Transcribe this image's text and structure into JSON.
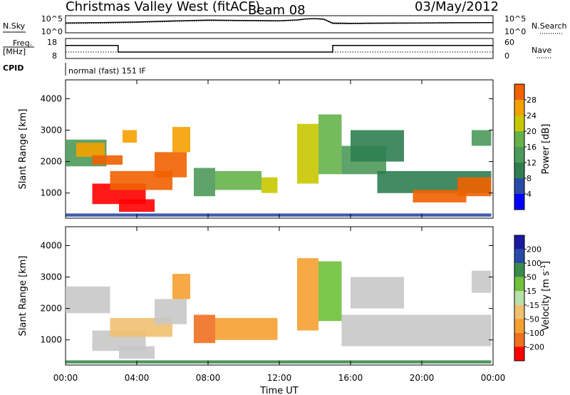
{
  "header": {
    "station": "Christmas Valley West (fitACF)",
    "beam": "Beam 08",
    "date": "03/May/2012"
  },
  "noise_panel": {
    "left_label": "N.Sky",
    "right_label": "N.Search",
    "left_ticks": [
      "10^5",
      "10^0"
    ],
    "right_ticks": [
      "10^5",
      "10^0"
    ]
  },
  "freq_panel": {
    "left_label_line1": "Freq.",
    "left_label_line2": "[MHz]",
    "right_label": "Nave",
    "left_ticks": [
      "18",
      "8"
    ],
    "right_ticks": [
      "60",
      "0"
    ]
  },
  "cpid": {
    "label": "CPID",
    "program": "normal (fast) 151 IF"
  },
  "x_axis": {
    "label": "Time UT",
    "ticks": [
      "00:00",
      "04:00",
      "08:00",
      "12:00",
      "16:00",
      "20:00",
      "00:00"
    ]
  },
  "colors": {
    "power": [
      "#0000ff",
      "#2a4aa8",
      "#2f7e52",
      "#4c9a5a",
      "#66b24a",
      "#c8c800",
      "#f5a000",
      "#f06000",
      "#ff0000"
    ],
    "velocity": [
      "#1a1aa0",
      "#2a4aa8",
      "#3a8a4a",
      "#6fc03a",
      "#b8e0a8",
      "#c8c8c8",
      "#f0c070",
      "#f5a030",
      "#f07020",
      "#ff0000"
    ]
  },
  "chart_data": [
    {
      "type": "line",
      "title": "",
      "ylabel": "N.Sky",
      "scale": "log",
      "ylim": [
        1,
        100000
      ],
      "xlim_hours": [
        0,
        24
      ],
      "series": [
        {
          "name": "N.Sky",
          "x": [
            0,
            2,
            4,
            6,
            8,
            10,
            12,
            13,
            13.5,
            14,
            14.5,
            15,
            16,
            18,
            20,
            22,
            24
          ],
          "y": [
            800,
            1000,
            1500,
            3000,
            5000,
            4000,
            3500,
            6000,
            12000,
            15000,
            10000,
            700,
            600,
            700,
            800,
            900,
            1000
          ]
        },
        {
          "name": "N.Search",
          "x": [
            0,
            2,
            4,
            6,
            8,
            10,
            12,
            13,
            13.5,
            14,
            14.5,
            15,
            16,
            18,
            20,
            22,
            24
          ],
          "y": [
            500,
            600,
            1000,
            2000,
            3500,
            3000,
            2500,
            4000,
            9000,
            11000,
            7000,
            400,
            400,
            500,
            600,
            700,
            800
          ]
        }
      ]
    },
    {
      "type": "line",
      "title": "",
      "ylabel": "Freq. [MHz]",
      "ylim": [
        8,
        18
      ],
      "xlim_hours": [
        0,
        24
      ],
      "series": [
        {
          "name": "Freq.",
          "x": [
            0,
            2.95,
            2.95,
            15.0,
            15.0,
            24
          ],
          "y": [
            14.5,
            14.5,
            11.2,
            11.2,
            14.5,
            14.5
          ]
        },
        {
          "name": "Nave",
          "x": [
            0,
            24
          ],
          "y": [
            18,
            18
          ]
        }
      ]
    },
    {
      "type": "heatmap",
      "title": "",
      "quantity": "Power",
      "xlabel": "Time UT",
      "ylabel": "Slant Range [km]",
      "xlim_hours": [
        0,
        24
      ],
      "ylim": [
        200,
        4600
      ],
      "yticks": [
        1000,
        2000,
        3000,
        4000
      ],
      "colorbar_label": "Power [dB]",
      "colorbar_ticks": [
        "4",
        "8",
        "12",
        "16",
        "20",
        "24",
        "28"
      ],
      "colorbar_range": [
        0,
        32
      ],
      "regions": [
        {
          "t0": 0.0,
          "t1": 2.3,
          "r0": 1850,
          "r1": 2700,
          "value": 14
        },
        {
          "t0": 0.6,
          "t1": 2.2,
          "r0": 2150,
          "r1": 2600,
          "value": 22
        },
        {
          "t0": 1.5,
          "t1": 3.2,
          "r0": 1900,
          "r1": 2200,
          "value": 26
        },
        {
          "t0": 1.5,
          "t1": 4.5,
          "r0": 650,
          "r1": 1300,
          "value": 30
        },
        {
          "t0": 2.5,
          "t1": 6.0,
          "r0": 1100,
          "r1": 1700,
          "value": 28
        },
        {
          "t0": 3.0,
          "t1": 5.0,
          "r0": 400,
          "r1": 800,
          "value": 29
        },
        {
          "t0": 5.0,
          "t1": 6.8,
          "r0": 1500,
          "r1": 2300,
          "value": 27
        },
        {
          "t0": 6.0,
          "t1": 7.0,
          "r0": 2300,
          "r1": 3100,
          "value": 24
        },
        {
          "t0": 3.2,
          "t1": 4.0,
          "r0": 2600,
          "r1": 3000,
          "value": 22
        },
        {
          "t0": 7.2,
          "t1": 8.4,
          "r0": 900,
          "r1": 1800,
          "value": 14
        },
        {
          "t0": 8.4,
          "t1": 11.0,
          "r0": 1100,
          "r1": 1700,
          "value": 16
        },
        {
          "t0": 11.0,
          "t1": 11.9,
          "r0": 1000,
          "r1": 1500,
          "value": 18
        },
        {
          "t0": 13.0,
          "t1": 14.2,
          "r0": 1300,
          "r1": 3200,
          "value": 20
        },
        {
          "t0": 14.2,
          "t1": 15.5,
          "r0": 1600,
          "r1": 3500,
          "value": 15
        },
        {
          "t0": 15.5,
          "t1": 18.0,
          "r0": 1600,
          "r1": 2500,
          "value": 12
        },
        {
          "t0": 16.0,
          "t1": 19.0,
          "r0": 2000,
          "r1": 3000,
          "value": 10
        },
        {
          "t0": 17.5,
          "t1": 23.9,
          "r0": 1000,
          "r1": 1700,
          "value": 8
        },
        {
          "t0": 19.5,
          "t1": 22.5,
          "r0": 700,
          "r1": 1100,
          "value": 26
        },
        {
          "t0": 22.0,
          "t1": 23.9,
          "r0": 900,
          "r1": 1500,
          "value": 28
        },
        {
          "t0": 22.8,
          "t1": 23.9,
          "r0": 2500,
          "r1": 3000,
          "value": 12
        },
        {
          "t0": 0.0,
          "t1": 23.9,
          "r0": 250,
          "r1": 350,
          "value": 6
        }
      ]
    },
    {
      "type": "heatmap",
      "title": "",
      "quantity": "Velocity",
      "xlabel": "Time UT",
      "ylabel": "Slant Range [km]",
      "xlim_hours": [
        0,
        24
      ],
      "ylim": [
        200,
        4600
      ],
      "yticks": [
        1000,
        2000,
        3000,
        4000
      ],
      "colorbar_label": "Velocity [m s^-1]",
      "colorbar_ticks": [
        "200",
        "100",
        "50",
        "15",
        "-15",
        "-50",
        "-100",
        "-200"
      ],
      "regions": [
        {
          "t0": 0.0,
          "t1": 2.5,
          "r0": 1850,
          "r1": 2700,
          "value": 0
        },
        {
          "t0": 1.5,
          "t1": 4.5,
          "r0": 650,
          "r1": 1300,
          "value": 0
        },
        {
          "t0": 2.5,
          "t1": 6.0,
          "r0": 1100,
          "r1": 1700,
          "value": -30
        },
        {
          "t0": 3.0,
          "t1": 5.0,
          "r0": 400,
          "r1": 800,
          "value": 0
        },
        {
          "t0": 5.0,
          "t1": 6.8,
          "r0": 1500,
          "r1": 2300,
          "value": 0
        },
        {
          "t0": 6.0,
          "t1": 7.0,
          "r0": 2300,
          "r1": 3100,
          "value": -60
        },
        {
          "t0": 7.2,
          "t1": 8.4,
          "r0": 900,
          "r1": 1800,
          "value": -150
        },
        {
          "t0": 8.4,
          "t1": 11.9,
          "r0": 1000,
          "r1": 1700,
          "value": -80
        },
        {
          "t0": 13.0,
          "t1": 14.2,
          "r0": 1300,
          "r1": 3600,
          "value": -60
        },
        {
          "t0": 14.2,
          "t1": 15.5,
          "r0": 1600,
          "r1": 3500,
          "value": 20
        },
        {
          "t0": 15.5,
          "t1": 23.9,
          "r0": 800,
          "r1": 1800,
          "value": 0
        },
        {
          "t0": 16.0,
          "t1": 19.0,
          "r0": 2000,
          "r1": 3000,
          "value": 0
        },
        {
          "t0": 22.8,
          "t1": 23.9,
          "r0": 2500,
          "r1": 3200,
          "value": 0
        },
        {
          "t0": 0.0,
          "t1": 23.9,
          "r0": 250,
          "r1": 350,
          "value": 40
        }
      ]
    }
  ]
}
